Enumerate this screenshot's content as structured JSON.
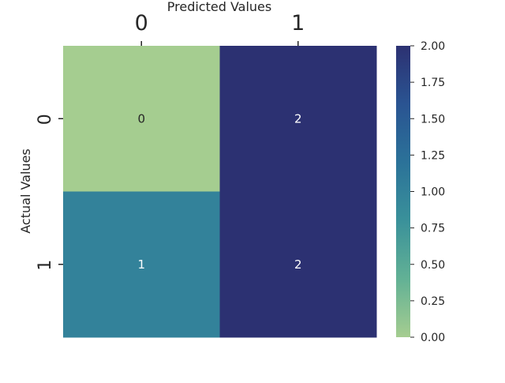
{
  "chart_data": {
    "type": "heatmap",
    "title": "",
    "xlabel": "Predicted Values",
    "ylabel": "Actual Values",
    "x_categories": [
      "0",
      "1"
    ],
    "y_categories": [
      "0",
      "1"
    ],
    "matrix": [
      [
        0,
        2
      ],
      [
        1,
        2
      ]
    ],
    "annotations": [
      [
        "0",
        "2"
      ],
      [
        "1",
        "2"
      ]
    ],
    "x_axis_position": "top",
    "colorbar": {
      "vmin": 0,
      "vmax": 2,
      "ticks": [
        "0.00",
        "0.25",
        "0.50",
        "0.75",
        "1.00",
        "1.25",
        "1.50",
        "1.75",
        "2.00"
      ],
      "colormap": "crest",
      "color_stops": [
        "#a5cd90",
        "#62b195",
        "#3a919a",
        "#2b7299",
        "#2a5492",
        "#2c3172"
      ]
    },
    "grid": false
  }
}
